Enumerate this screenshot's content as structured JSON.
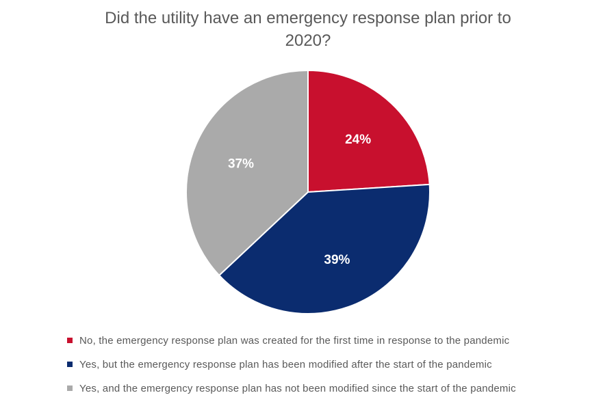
{
  "chart_data": {
    "type": "pie",
    "title_lines": [
      "Did the utility have an emergency response plan prior to",
      "2020?"
    ],
    "slices": [
      {
        "label": "No, the emergency response plan was created for the first time in response to the pandemic",
        "value": 24,
        "display": "24%",
        "color": "#C8102E"
      },
      {
        "label": "Yes, but the emergency response plan has been modified after the start of the pandemic",
        "value": 39,
        "display": "39%",
        "color": "#0B2C6F"
      },
      {
        "label": "Yes, and the emergency response plan has not been modified since the start of the pandemic",
        "value": 37,
        "display": "37%",
        "color": "#AAAAAA"
      }
    ],
    "legend_position": "bottom"
  }
}
